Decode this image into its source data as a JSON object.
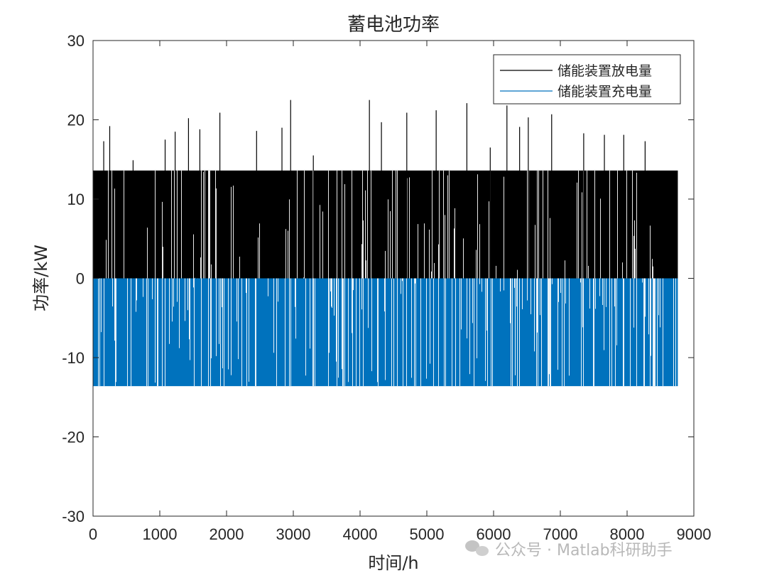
{
  "chart_data": {
    "type": "bar",
    "title": "蓄电池功率",
    "xlabel": "时间/h",
    "ylabel": "功率/kW",
    "xlim": [
      0,
      9000
    ],
    "ylim": [
      -30,
      30
    ],
    "xticks": [
      0,
      1000,
      2000,
      3000,
      4000,
      5000,
      6000,
      7000,
      8000,
      9000
    ],
    "yticks": [
      30,
      20,
      10,
      0,
      -10,
      -20,
      -30
    ],
    "ytick_labels": [
      "30",
      "20",
      "10",
      "0",
      "-10",
      "-20",
      "-30"
    ],
    "grid": false,
    "legend_position": "top-right",
    "n_hours": 8760,
    "series": [
      {
        "name": "储能装置放电量",
        "color": "#000000",
        "typical_value": 13.6,
        "spikes": [
          {
            "x": 160,
            "y": 17.3
          },
          {
            "x": 250,
            "y": 19.2
          },
          {
            "x": 600,
            "y": 14.9
          },
          {
            "x": 1080,
            "y": 17.5
          },
          {
            "x": 1230,
            "y": 18.5
          },
          {
            "x": 1430,
            "y": 20.2
          },
          {
            "x": 1600,
            "y": 18.8
          },
          {
            "x": 1900,
            "y": 20.9
          },
          {
            "x": 2450,
            "y": 18.6
          },
          {
            "x": 2830,
            "y": 19.0
          },
          {
            "x": 2960,
            "y": 22.5
          },
          {
            "x": 3300,
            "y": 15.5
          },
          {
            "x": 4140,
            "y": 22.5
          },
          {
            "x": 4320,
            "y": 19.7
          },
          {
            "x": 4700,
            "y": 20.9
          },
          {
            "x": 5140,
            "y": 21.2
          },
          {
            "x": 5600,
            "y": 22.1
          },
          {
            "x": 5950,
            "y": 16.5
          },
          {
            "x": 6200,
            "y": 21.8
          },
          {
            "x": 6390,
            "y": 19.1
          },
          {
            "x": 6520,
            "y": 20.3
          },
          {
            "x": 6870,
            "y": 20.7
          },
          {
            "x": 7350,
            "y": 18.3
          },
          {
            "x": 7660,
            "y": 18.1
          },
          {
            "x": 7950,
            "y": 18.1
          },
          {
            "x": 8270,
            "y": 17.3
          }
        ]
      },
      {
        "name": "储能装置充电量",
        "color": "#0072BD",
        "typical_value": -13.6
      }
    ]
  },
  "watermark": {
    "text": "公众号 · Matlab科研助手"
  }
}
